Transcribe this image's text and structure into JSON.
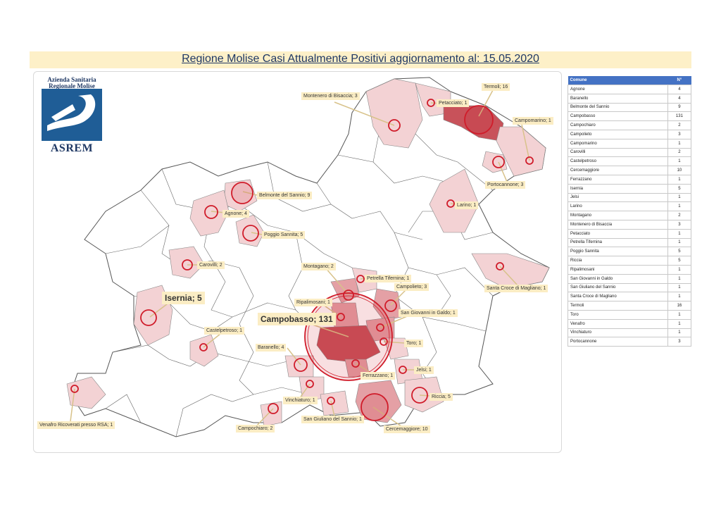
{
  "title": "Regione Molise Casi Attualmente Positivi aggiornamento al: 15.05.2020",
  "logo": {
    "line1": "Azienda Sanitaria",
    "line2": "Regionale Molise",
    "brand": "ASREM"
  },
  "colors": {
    "title_bg": "#fdf0c8",
    "title_text": "#1f3864",
    "fill_light": "#f3d2d4",
    "fill_mid": "#e4a0a5",
    "fill_dark": "#c8525a",
    "circle_stroke": "#d01c2a",
    "callout_bg": "#fbedc4",
    "table_header": "#4472c4"
  },
  "callouts": [
    {
      "id": "montenero",
      "text": "Montenero di Bisaccia; 3"
    },
    {
      "id": "petacciato",
      "text": "Petacciato; 1"
    },
    {
      "id": "termoli",
      "text": "Termoli; 16"
    },
    {
      "id": "campomarino",
      "text": "Campomarino; 1"
    },
    {
      "id": "portocannone",
      "text": "Portocannone; 3"
    },
    {
      "id": "larino",
      "text": "Larino; 1"
    },
    {
      "id": "belmonte",
      "text": "Belmonte del Sannio; 9"
    },
    {
      "id": "agnone",
      "text": "Agnone; 4"
    },
    {
      "id": "poggio",
      "text": "Poggio Sannita; 5"
    },
    {
      "id": "carovilli",
      "text": "Carovilli; 2"
    },
    {
      "id": "santacroce",
      "text": "Santa Croce di Magliano; 1"
    },
    {
      "id": "montagano",
      "text": "Montagano; 2"
    },
    {
      "id": "petrella",
      "text": "Petrella Tifernina; 1"
    },
    {
      "id": "campolieto",
      "text": "Campolieto; 3"
    },
    {
      "id": "ripalimosani",
      "text": "Ripalimosani; 1"
    },
    {
      "id": "sangiovanni",
      "text": "San Giovanni in Galdo; 1"
    },
    {
      "id": "isernia",
      "text": "Isernia; 5"
    },
    {
      "id": "campobasso",
      "text": "Campobasso; 131"
    },
    {
      "id": "castelpetroso",
      "text": "Castelpetroso; 1"
    },
    {
      "id": "toro",
      "text": "Toro; 1"
    },
    {
      "id": "baranello",
      "text": "Baranello; 4"
    },
    {
      "id": "jelsi",
      "text": "Jelsi; 1"
    },
    {
      "id": "ferrazzano",
      "text": "Ferrazzano; 1"
    },
    {
      "id": "riccia",
      "text": "Riccia; 5"
    },
    {
      "id": "vinchiaturo",
      "text": "Vinchiaturo; 1"
    },
    {
      "id": "sangiuliano",
      "text": "San Giuliano del Sannio; 1"
    },
    {
      "id": "cercemaggiore",
      "text": "Cercemaggiore; 10"
    },
    {
      "id": "campochiaro",
      "text": "Campochiaro; 2"
    },
    {
      "id": "venafro",
      "text": "Venafro Ricoverati presso RSA; 1"
    }
  ],
  "table": {
    "headers": [
      "Comune",
      "N°"
    ],
    "rows": [
      [
        "Agnone",
        "4"
      ],
      [
        "Baranello",
        "4"
      ],
      [
        "Belmonte del Sannio",
        "9"
      ],
      [
        "Campobasso",
        "131"
      ],
      [
        "Campochiaro",
        "2"
      ],
      [
        "Campolieto",
        "3"
      ],
      [
        "Campomarino",
        "1"
      ],
      [
        "Carovilli",
        "2"
      ],
      [
        "Castelpetroso",
        "1"
      ],
      [
        "Cercemaggiore",
        "10"
      ],
      [
        "Ferrazzano",
        "1"
      ],
      [
        "Isernia",
        "5"
      ],
      [
        "Jelsi",
        "1"
      ],
      [
        "Larino",
        "1"
      ],
      [
        "Montagano",
        "2"
      ],
      [
        "Montenero di Bisaccia",
        "3"
      ],
      [
        "Petacciato",
        "1"
      ],
      [
        "Petrella Tifernina",
        "1"
      ],
      [
        "Poggio Sannita",
        "5"
      ],
      [
        "Riccia",
        "5"
      ],
      [
        "Ripalimosani",
        "1"
      ],
      [
        "San Giovanni in Galdo",
        "1"
      ],
      [
        "San Giuliano del Sannio",
        "1"
      ],
      [
        "Santa Croce di Magliano",
        "1"
      ],
      [
        "Termoli",
        "16"
      ],
      [
        "Toro",
        "1"
      ],
      [
        "Venafro",
        "1"
      ],
      [
        "Vinchiaturo",
        "1"
      ],
      [
        "Portocannone",
        "3"
      ]
    ]
  }
}
